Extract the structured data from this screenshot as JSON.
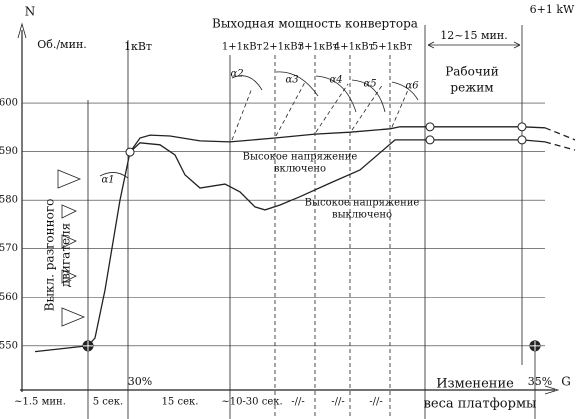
{
  "chart_data": {
    "type": "line",
    "title": "Выходная мощность конвертора",
    "y_label_symbol": "N",
    "y_label": "Об./мин.",
    "x_label_symbol": "G",
    "x_label": [
      "Изменение",
      "веса платформы"
    ],
    "xlim": [
      0,
      560
    ],
    "ylim": [
      540.9,
      617.1
    ],
    "yticks": [
      550,
      560,
      570,
      580,
      590,
      600
    ],
    "grid": true,
    "series": [
      {
        "color": "#222222",
        "style": "solid",
        "x": [
          15,
          68,
          75,
          85,
          100,
          110,
          120,
          130,
          150,
          180,
          210,
          255,
          295,
          330,
          370,
          380,
          410,
          502,
          525
        ],
        "values": [
          548.8,
          550,
          551.6,
          561.5,
          580,
          589.9,
          592.8,
          593.4,
          593.2,
          592.2,
          592,
          592.8,
          593.6,
          594,
          594.7,
          595.1,
          595.1,
          595.1,
          594.9
        ]
      },
      {
        "color": "#222222",
        "style": "solid",
        "x": [
          110,
          120,
          140,
          155,
          165,
          180,
          205,
          220,
          235,
          245,
          260,
          280,
          310,
          340,
          375,
          410,
          502,
          525
        ],
        "values": [
          589.9,
          591.8,
          591.4,
          589.3,
          585.2,
          582.5,
          583.3,
          581.7,
          578.6,
          578,
          579,
          580.7,
          583.5,
          586.2,
          592.4,
          592.4,
          592.4,
          592
        ]
      },
      {
        "color": "#222222",
        "style": "dashed",
        "x": [
          525,
          555
        ],
        "values": [
          594.9,
          592.4
        ]
      },
      {
        "color": "#222222",
        "style": "dashed",
        "x": [
          525,
          555
        ],
        "values": [
          592,
          590.3
        ]
      }
    ],
    "markers": {
      "x": [
        68,
        515,
        110,
        410,
        410,
        502,
        502
      ],
      "values": [
        550,
        550,
        589.9,
        595.1,
        592.4,
        595.1,
        592.4
      ],
      "filled": [
        true,
        true,
        false,
        false,
        false,
        false,
        false
      ]
    },
    "annotations": {
      "power_start": "1кВт",
      "power_steps": [
        "1+1кВт",
        "2+1кВт",
        "3+1кВт",
        "4+1кВт",
        "5+1кВт"
      ],
      "power_final": "6+1 kW",
      "work_time": "12~15 мин.",
      "work_mode": [
        "Рабочий",
        "режим"
      ],
      "hv_on": [
        "Высокое напряжение",
        "включено"
      ],
      "hv_off": [
        "Высокое напряжение",
        "выключено"
      ],
      "engine_off": [
        "Выкл. разгонного",
        "двигателя"
      ],
      "angles": [
        "α1",
        "α2",
        "α3",
        "α4",
        "α5",
        "α6"
      ],
      "percent_start": "30%",
      "percent_end": "35%",
      "durations": [
        "~1.5 мин.",
        "5 сек.",
        "15 сек.",
        "~10-30 сек.",
        "-//-",
        "-//-",
        "-//-"
      ]
    }
  }
}
